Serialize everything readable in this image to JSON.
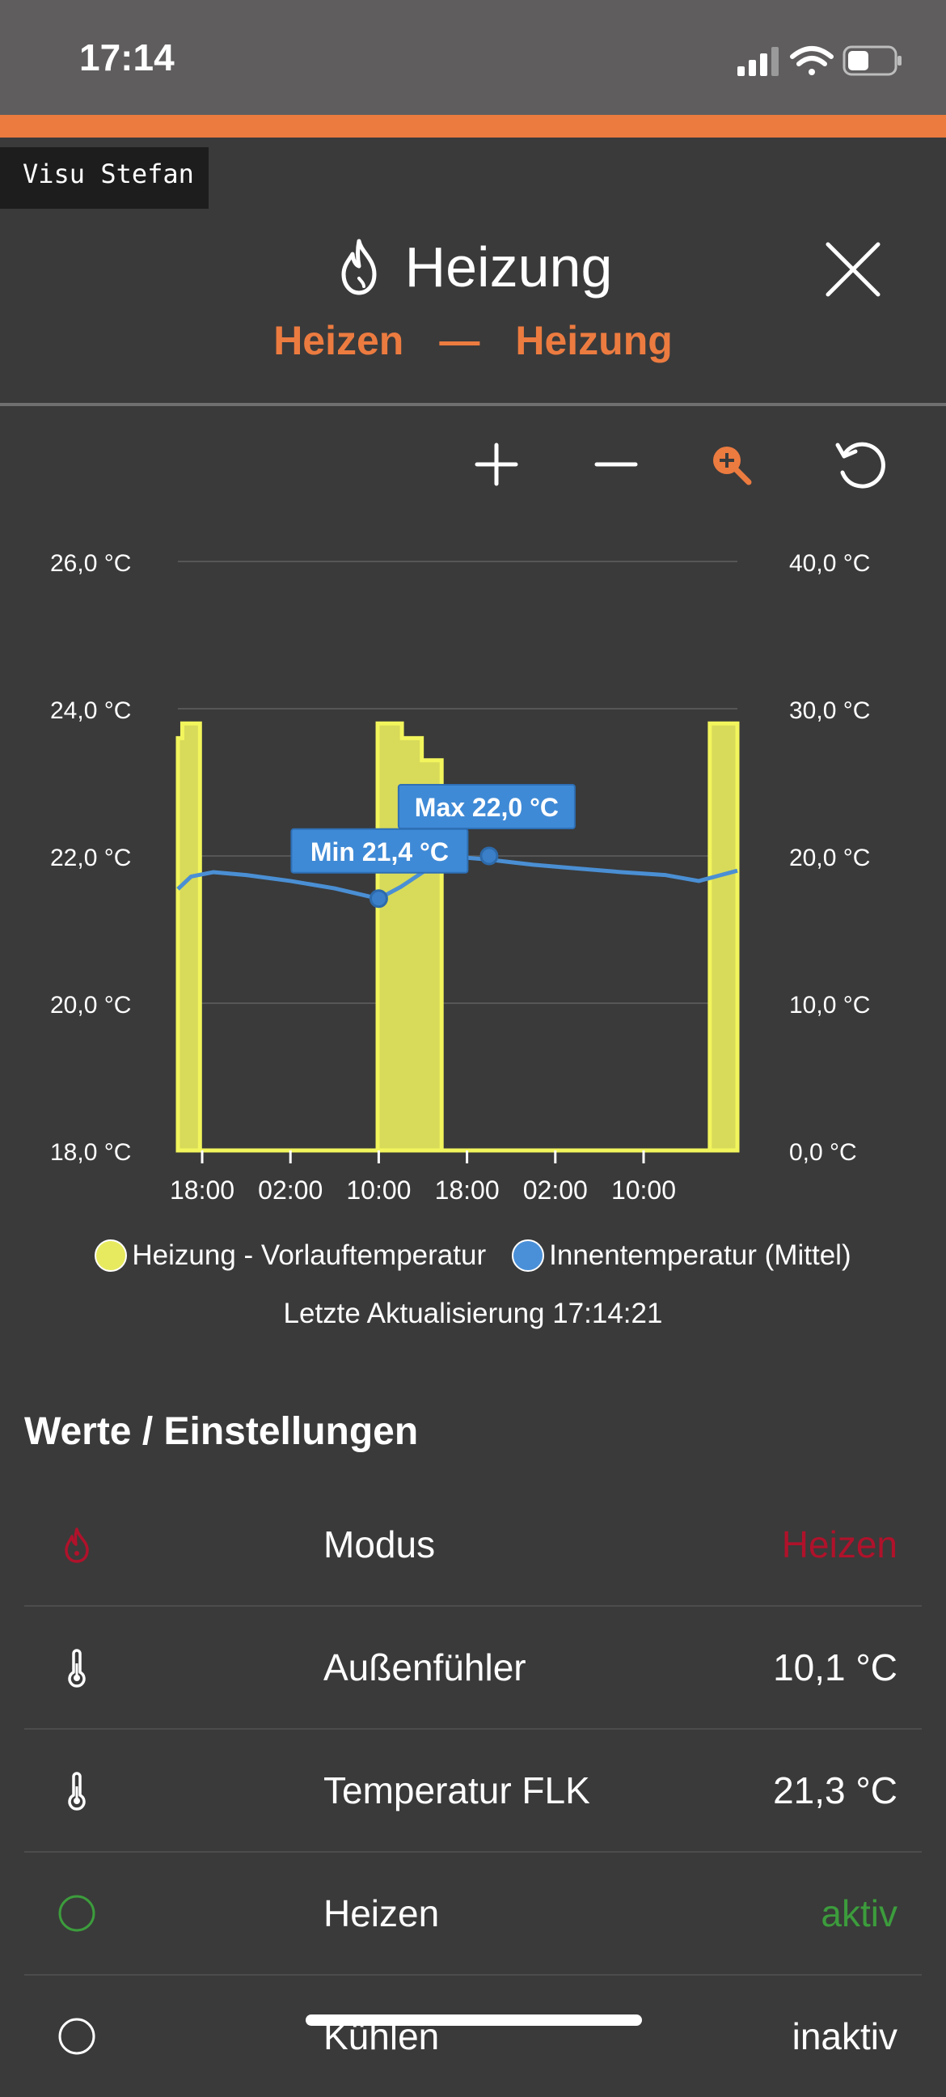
{
  "status_bar": {
    "time": "17:14"
  },
  "header": {
    "visu_label": "Visu Stefan",
    "title": "Heizung",
    "title_icon": "flame-icon",
    "subtitle_left": "Heizen",
    "subtitle_sep": "—",
    "subtitle_right": "Heizung",
    "accent_color": "#ec7b40"
  },
  "toolbar": {
    "tools": [
      "zoom-in-icon",
      "zoom-out-icon",
      "zoom-select-icon",
      "reset-zoom-icon"
    ]
  },
  "chart_data": {
    "type": "line",
    "x_ticks": [
      "18:00",
      "02:00",
      "10:00",
      "18:00",
      "02:00",
      "10:00"
    ],
    "y_left": {
      "ticks": [
        "26,0 °C",
        "24,0 °C",
        "22,0 °C",
        "20,0 °C",
        "18,0 °C"
      ],
      "range": [
        18,
        26
      ]
    },
    "y_right": {
      "ticks": [
        "40,0 °C",
        "30,0 °C",
        "20,0 °C",
        "10,0 °C",
        "0,0 °C"
      ],
      "range": [
        0,
        40
      ]
    },
    "grid": true,
    "series": [
      {
        "name": "Heizung - Vorlauftemperatur",
        "axis": "right",
        "style": "area-step",
        "color": "#e7ea5e",
        "x": [
          15.8,
          16.2,
          16.2,
          17.8,
          17.8,
          33.9,
          33.9,
          36.1,
          36.1,
          37.9,
          37.9,
          39.7,
          39.7,
          64.0,
          64.0,
          66.5
        ],
        "values": [
          28.0,
          28.0,
          29.0,
          29.0,
          0.0,
          0.0,
          29.0,
          29.0,
          28.0,
          28.0,
          26.5,
          26.5,
          0.0,
          0.0,
          29.0,
          29.0
        ]
      },
      {
        "name": "Innentemperatur (Mittel)",
        "axis": "left",
        "style": "line",
        "color": "#4a90d9",
        "x": [
          15.8,
          17.0,
          19.0,
          22.0,
          26.0,
          30.0,
          34.0,
          36.0,
          38.0,
          40.0,
          44.0,
          48.0,
          52.0,
          56.0,
          60.0,
          63.0,
          64.5,
          66.5
        ],
        "values": [
          21.55,
          21.72,
          21.78,
          21.74,
          21.66,
          21.56,
          21.42,
          21.58,
          21.78,
          22.0,
          21.95,
          21.88,
          21.83,
          21.78,
          21.74,
          21.66,
          21.72,
          21.8
        ]
      }
    ],
    "annotations": [
      {
        "label": "Min 21,4 °C",
        "x": 34.0,
        "value": 21.42
      },
      {
        "label": "Max 22,0 °C",
        "x": 44.0,
        "value": 22.0
      }
    ],
    "x_tick_values": [
      18,
      26,
      34,
      42,
      50,
      58
    ],
    "x_range": [
      15.8,
      66.5
    ],
    "legend_placement": "bottom"
  },
  "chart_footer": {
    "last_update": "Letzte Aktualisierung 17:14:21"
  },
  "settings": {
    "section_title": "Werte / Einstellungen",
    "rows": [
      {
        "icon": "flame-icon",
        "label": "Modus",
        "value": "Heizen",
        "color": "#b0122b"
      },
      {
        "icon": "thermometer-icon",
        "label": "Außenfühler",
        "value": "10,1 °C",
        "color": "#ffffff"
      },
      {
        "icon": "thermometer-icon",
        "label": "Temperatur FLK",
        "value": "21,3 °C",
        "color": "#ffffff"
      },
      {
        "icon": "circle-icon",
        "label": "Heizen",
        "value": "aktiv",
        "color": "#3c9c3c"
      },
      {
        "icon": "circle-icon",
        "label": "Kühlen",
        "value": "inaktiv",
        "color": "#ffffff"
      }
    ]
  }
}
